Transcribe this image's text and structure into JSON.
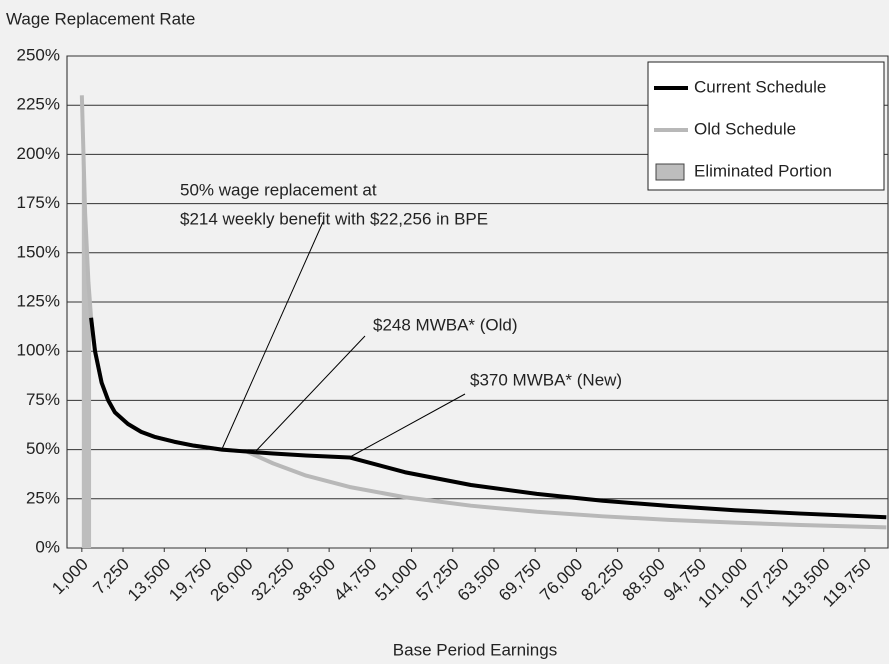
{
  "chart_data": {
    "type": "line",
    "y_axis_title": "Wage Replacement Rate",
    "x_axis_title": "Base Period Earnings",
    "x": [
      1000,
      1500,
      2000,
      2400,
      3000,
      4000,
      5000,
      6000,
      8000,
      10000,
      12000,
      15000,
      18000,
      22256,
      26000,
      30000,
      35000,
      41600,
      50000,
      60000,
      70000,
      80000,
      90000,
      100000,
      110000,
      123000
    ],
    "series": [
      {
        "name": "Current Schedule",
        "color": "#000000",
        "kind": "line",
        "values": [
          null,
          null,
          null,
          117,
          100,
          84,
          75,
          69,
          63,
          59,
          56.5,
          54,
          52,
          50,
          49,
          48,
          47,
          46,
          38.5,
          32,
          27.5,
          24,
          21.4,
          19.2,
          17.5,
          15.6
        ]
      },
      {
        "name": "Old Schedule",
        "color": "#b8b8b8",
        "kind": "line",
        "values": [
          230,
          170,
          135,
          117,
          100,
          84,
          75,
          69,
          63,
          59,
          56.5,
          54,
          52,
          50,
          49,
          43,
          36.8,
          31,
          25.8,
          21.5,
          18.4,
          16.1,
          14.3,
          12.9,
          11.7,
          10.5
        ]
      },
      {
        "name": "Eliminated Portion",
        "color": "#bdbdbd",
        "kind": "area",
        "values": [
          230,
          170,
          135,
          117,
          null,
          null,
          null,
          null,
          null,
          null,
          null,
          null,
          null,
          null,
          null,
          null,
          null,
          null,
          null,
          null,
          null,
          null,
          null,
          null,
          null,
          null
        ]
      }
    ],
    "xlim": [
      -1250,
      123250
    ],
    "ylim": [
      0,
      250
    ],
    "yticks": [
      {
        "value": 0,
        "label": "0%"
      },
      {
        "value": 25,
        "label": "25%"
      },
      {
        "value": 50,
        "label": "50%"
      },
      {
        "value": 75,
        "label": "75%"
      },
      {
        "value": 100,
        "label": "100%"
      },
      {
        "value": 125,
        "label": "125%"
      },
      {
        "value": 150,
        "label": "150%"
      },
      {
        "value": 175,
        "label": "175%"
      },
      {
        "value": 200,
        "label": "200%"
      },
      {
        "value": 225,
        "label": "225%"
      },
      {
        "value": 250,
        "label": "250%"
      }
    ],
    "xticks": [
      {
        "value": 1000,
        "label": "1,000"
      },
      {
        "value": 7250,
        "label": "7,250"
      },
      {
        "value": 13500,
        "label": "13,500"
      },
      {
        "value": 19750,
        "label": "19,750"
      },
      {
        "value": 26000,
        "label": "26,000"
      },
      {
        "value": 32250,
        "label": "32,250"
      },
      {
        "value": 38500,
        "label": "38,500"
      },
      {
        "value": 44750,
        "label": "44,750"
      },
      {
        "value": 51000,
        "label": "51,000"
      },
      {
        "value": 57250,
        "label": "57,250"
      },
      {
        "value": 63500,
        "label": "63,500"
      },
      {
        "value": 69750,
        "label": "69,750"
      },
      {
        "value": 76000,
        "label": "76,000"
      },
      {
        "value": 82250,
        "label": "82,250"
      },
      {
        "value": 88500,
        "label": "88,500"
      },
      {
        "value": 94750,
        "label": "94,750"
      },
      {
        "value": 101000,
        "label": "101,000"
      },
      {
        "value": 107250,
        "label": "107,250"
      },
      {
        "value": 113500,
        "label": "113,500"
      },
      {
        "value": 119750,
        "label": "119,750"
      }
    ],
    "grid": true,
    "legend": "top-right",
    "annotations": [
      {
        "lines": [
          "50% wage replacement at",
          "$214 weekly benefit with $22,256 in BPE"
        ]
      },
      {
        "lines": [
          "$248 MWBA* (Old)"
        ]
      },
      {
        "lines": [
          "$370 MWBA* (New)"
        ]
      }
    ]
  }
}
